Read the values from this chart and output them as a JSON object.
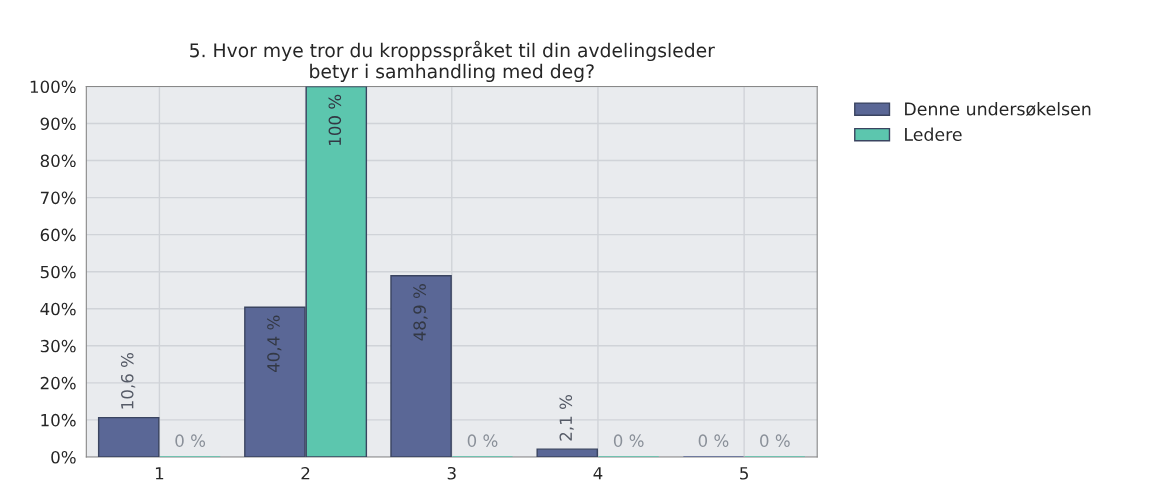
{
  "chart_data": {
    "type": "bar",
    "title": "5. Hvor mye tror du kroppsspråket til din avdelingsleder\nbetyr i samhandling med deg?",
    "categories": [
      "1",
      "2",
      "3",
      "4",
      "5"
    ],
    "series": [
      {
        "name": "Denne undersøkelsen",
        "color": "#5a6796",
        "values": [
          10.6,
          40.4,
          48.9,
          2.1,
          0
        ],
        "value_labels": [
          "10,6 %",
          "40,4 %",
          "48,9 %",
          "2,1 %",
          "0 %"
        ]
      },
      {
        "name": "Ledere",
        "color": "#5cc6ae",
        "values": [
          0,
          100,
          0,
          0,
          0
        ],
        "value_labels": [
          "0 %",
          "100 %",
          "0 %",
          "0 %",
          "0 %"
        ]
      }
    ],
    "ylim": [
      0,
      100
    ],
    "yticks": [
      {
        "value": 0,
        "label": "0%"
      },
      {
        "value": 10,
        "label": "10%"
      },
      {
        "value": 20,
        "label": "20%"
      },
      {
        "value": 30,
        "label": "30%"
      },
      {
        "value": 40,
        "label": "40%"
      },
      {
        "value": 50,
        "label": "50%"
      },
      {
        "value": 60,
        "label": "60%"
      },
      {
        "value": 70,
        "label": "70%"
      },
      {
        "value": 80,
        "label": "80%"
      },
      {
        "value": 90,
        "label": "90%"
      },
      {
        "value": 100,
        "label": "100%"
      }
    ],
    "grid": true,
    "legend": "top right"
  }
}
